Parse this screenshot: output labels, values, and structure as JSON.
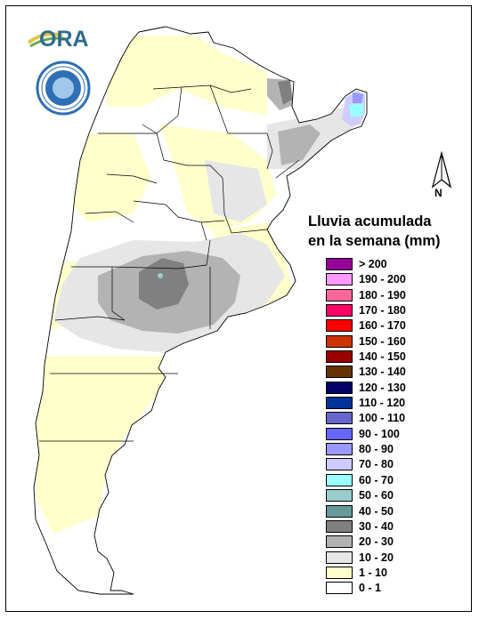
{
  "legend": {
    "title_line1": "Lluvia acumulada",
    "title_line2": "en la semana (mm)",
    "items": [
      {
        "label": "> 200",
        "color": "#990099"
      },
      {
        "label": "190 - 200",
        "color": "#ff99ff"
      },
      {
        "label": "180 - 190",
        "color": "#ff6699"
      },
      {
        "label": "170 - 180",
        "color": "#ff0066"
      },
      {
        "label": "160 - 170",
        "color": "#ff0000"
      },
      {
        "label": "150 - 160",
        "color": "#cc3300"
      },
      {
        "label": "140 - 150",
        "color": "#990000"
      },
      {
        "label": "130 - 140",
        "color": "#663300"
      },
      {
        "label": "120 - 130",
        "color": "#000066"
      },
      {
        "label": "110 - 120",
        "color": "#003399"
      },
      {
        "label": "100 - 110",
        "color": "#6666cc"
      },
      {
        "label": "90 - 100",
        "color": "#6666ff"
      },
      {
        "label": "80 - 90",
        "color": "#9999ff"
      },
      {
        "label": "70 - 80",
        "color": "#ccccff"
      },
      {
        "label": "60 - 70",
        "color": "#99ffff"
      },
      {
        "label": "50 - 60",
        "color": "#99cccc"
      },
      {
        "label": "40 - 50",
        "color": "#669999"
      },
      {
        "label": "30 - 40",
        "color": "#808080"
      },
      {
        "label": "20 - 30",
        "color": "#b3b3b3"
      },
      {
        "label": "10 - 20",
        "color": "#e6e6e6"
      },
      {
        "label": "1 - 10",
        "color": "#ffffcc"
      },
      {
        "label": "0 - 1",
        "color": "#ffffff"
      }
    ]
  },
  "north_arrow": {
    "label": "N",
    "icon": "north-arrow-icon"
  },
  "logos": {
    "ora": {
      "text": "ORA",
      "icon": "ora-logo-icon"
    },
    "smn": {
      "icon": "smn-seal-icon"
    }
  },
  "colors": {
    "dry": "#ffffcc",
    "light": "#e6e6e6",
    "medium": "#b3b3b3",
    "heavy": "#808080",
    "teal": "#669999",
    "cyan": "#99ffff",
    "violet": "#9999ff"
  }
}
